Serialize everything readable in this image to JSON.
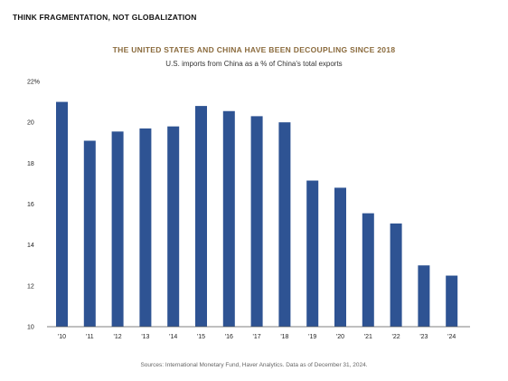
{
  "header": {
    "text": "THINK FRAGMENTATION, NOT GLOBALIZATION"
  },
  "chart_data": {
    "type": "bar",
    "title": "THE UNITED STATES AND CHINA HAVE BEEN DECOUPLING SINCE 2018",
    "subtitle": "U.S. imports from China as a % of China's total exports",
    "categories": [
      "'10",
      "'11",
      "'12",
      "'13",
      "'14",
      "'15",
      "'16",
      "'17",
      "'18",
      "'19",
      "'20",
      "'21",
      "'22",
      "'23",
      "'24"
    ],
    "values": [
      21.0,
      19.1,
      19.55,
      19.7,
      19.8,
      20.8,
      20.55,
      20.3,
      20.0,
      17.15,
      16.8,
      15.55,
      15.05,
      13.0,
      12.5
    ],
    "ylim": [
      10,
      22
    ],
    "yticks": [
      10,
      12,
      14,
      16,
      18,
      20,
      22
    ],
    "ytick_labels": [
      "10",
      "12",
      "14",
      "16",
      "18",
      "20",
      "22%"
    ],
    "xlabel": "",
    "ylabel": "",
    "grid": false,
    "bar_color": "#2e5393"
  },
  "source": {
    "text": "Sources: International Monetary Fund, Haver Analytics. Data as of December 31, 2024."
  }
}
